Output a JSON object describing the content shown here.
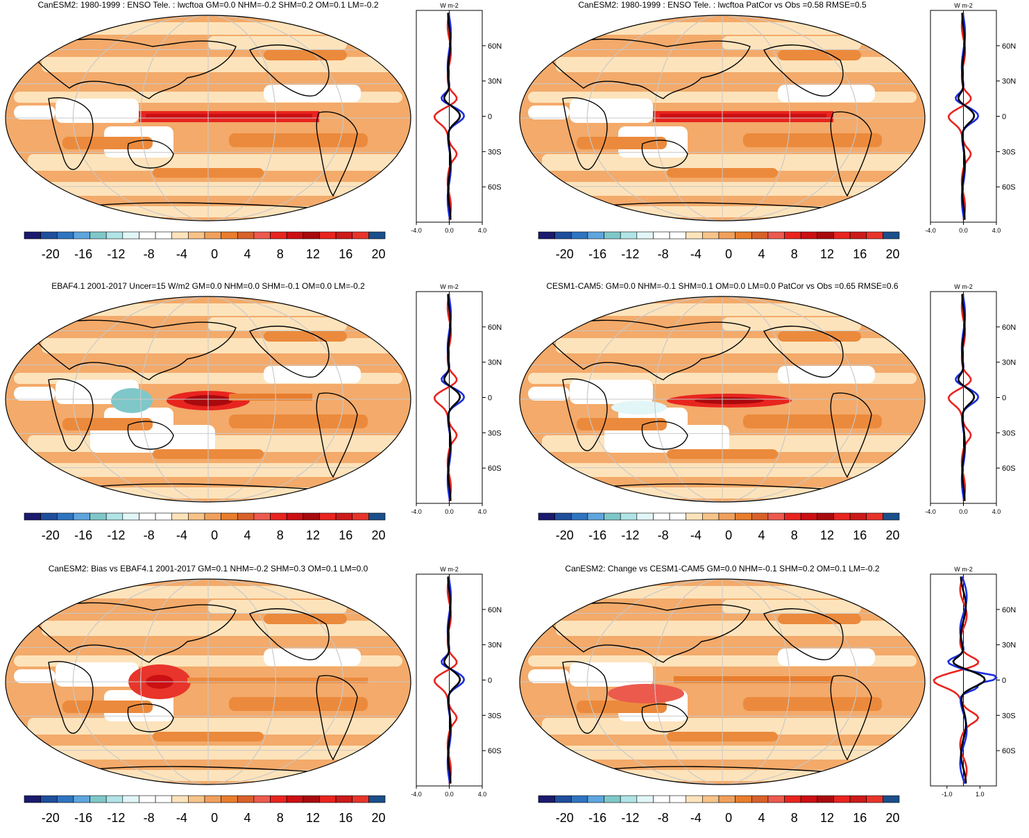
{
  "panels": [
    {
      "id": "p1",
      "title": "CanESM2: 1980-1999 : ENSO Tele. : lwcftoa GM=0.0 NHM=-0.2 SHM=0.2 OM=0.1 LM=-0.2",
      "profile": {
        "units": "W m-2",
        "xticks": [
          "-4.0",
          "0.0",
          "4.0"
        ],
        "xrange": [
          -4,
          4
        ]
      }
    },
    {
      "id": "p2",
      "title": "CanESM2: 1980-1999 : ENSO Tele. : lwcftoa PatCor vs Obs =0.58 RMSE=0.5",
      "profile": {
        "units": "W m-2",
        "xticks": [
          "-4.0",
          "0.0",
          "4.0"
        ],
        "xrange": [
          -4,
          4
        ]
      }
    },
    {
      "id": "p3",
      "title": "EBAF4.1 2001-2017 Uncer=15 W/m2 GM=0.0 NHM=0.0 SHM=-0.1 OM=0.0 LM=-0.2",
      "profile": {
        "units": "W m-2",
        "xticks": [
          "-4.0",
          "0.0",
          "4.0"
        ],
        "xrange": [
          -4,
          4
        ]
      }
    },
    {
      "id": "p4",
      "title": "CESM1-CAM5: GM=0.0 NHM=-0.1 SHM=0.1 OM=0.0 LM=0.0 PatCor vs Obs =0.65 RMSE=0.6",
      "profile": {
        "units": "W m-2",
        "xticks": [
          "-4.0",
          "0.0",
          "4.0"
        ],
        "xrange": [
          -4,
          4
        ]
      }
    },
    {
      "id": "p5",
      "title": "CanESM2: Bias vs EBAF4.1 2001-2017 GM=0.1 NHM=-0.2 SHM=0.3 OM=0.1 LM=0.0",
      "profile": {
        "units": "W m-2",
        "xticks": [
          "-4.0",
          "0.0",
          "4.0"
        ],
        "xrange": [
          -4,
          4
        ]
      }
    },
    {
      "id": "p6",
      "title": "CanESM2: Change vs CESM1-CAM5 GM=0.0 NHM=-0.1 SHM=0.2 OM=0.1 LM=-0.2",
      "profile": {
        "units": "W m-2",
        "xticks": [
          "-1.0",
          "1.0"
        ],
        "xrange": [
          -2,
          2
        ]
      }
    }
  ],
  "latitude_ticks": [
    "60N",
    "30N",
    "0",
    "30S",
    "60S"
  ],
  "colorbar": {
    "labels": [
      "-20",
      "-16",
      "-12",
      "-8",
      "-4",
      "0",
      "4",
      "8",
      "12",
      "16",
      "20"
    ],
    "colors": [
      "#1a1a6e",
      "#1f4e9c",
      "#2f74c0",
      "#5fa5de",
      "#7fc7c9",
      "#b0e4e6",
      "#e2f6f8",
      "#ffffff",
      "#ffffff",
      "#fde3bb",
      "#f6c389",
      "#f0a05c",
      "#e87d2d",
      "#d9612a",
      "#ec5a4e",
      "#e8241f",
      "#cc0f13",
      "#a80a0e",
      "#e8241f",
      "#cc1a1a",
      "#e8342a",
      "#1a4f8a"
    ]
  },
  "profile_line_colors": {
    "obs": "#e8241f",
    "model": "#1b2ee0",
    "reference": "#000000"
  }
}
